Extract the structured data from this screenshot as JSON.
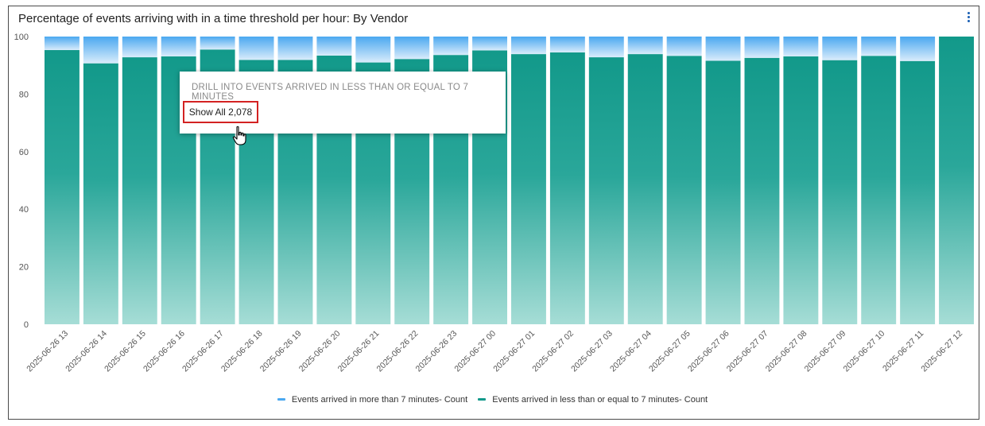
{
  "title": "Percentage of events arriving with in a time threshold per hour: By Vendor",
  "tooltip": {
    "header": "DRILL INTO EVENTS ARRIVED IN LESS THAN OR EQUAL TO 7 MINUTES",
    "button_label": "Show All 2,078"
  },
  "legend": {
    "items": [
      {
        "label": "Events arrived in more than 7 minutes- Count",
        "color": "#4aa8f0"
      },
      {
        "label": "Events arrived in less than or equal to 7 minutes- Count",
        "color": "#11998a"
      }
    ]
  },
  "icons": {
    "menu": "kebab-menu-icon",
    "cursor": "hand-pointer-icon"
  },
  "chart_data": {
    "type": "bar",
    "stacked": true,
    "categories": [
      "2025-06-26 13",
      "2025-06-26 14",
      "2025-06-26 15",
      "2025-06-26 16",
      "2025-06-26 17",
      "2025-06-26 18",
      "2025-06-26 19",
      "2025-06-26 20",
      "2025-06-26 21",
      "2025-06-26 22",
      "2025-06-26 23",
      "2025-06-27 00",
      "2025-06-27 01",
      "2025-06-27 02",
      "2025-06-27 03",
      "2025-06-27 04",
      "2025-06-27 05",
      "2025-06-27 06",
      "2025-06-27 07",
      "2025-06-27 08",
      "2025-06-27 09",
      "2025-06-27 10",
      "2025-06-27 11",
      "2025-06-27 12"
    ],
    "series": [
      {
        "name": "Events arrived in less than or equal to 7 minutes- Count",
        "values": [
          95.3,
          90.7,
          92.8,
          93.1,
          95.5,
          91.9,
          91.9,
          93.4,
          91.0,
          92.2,
          93.6,
          95.2,
          93.9,
          94.5,
          92.8,
          93.9,
          93.3,
          91.6,
          92.6,
          93.1,
          91.8,
          93.3,
          91.5,
          100
        ]
      },
      {
        "name": "Events arrived in more than 7 minutes- Count",
        "values": [
          4.7,
          9.3,
          7.2,
          6.9,
          4.5,
          8.1,
          8.1,
          6.6,
          9.0,
          7.8,
          6.4,
          4.8,
          6.1,
          5.5,
          7.2,
          6.1,
          6.7,
          8.4,
          7.4,
          6.9,
          8.2,
          6.7,
          8.5,
          0
        ]
      }
    ],
    "ylim": [
      0,
      100
    ],
    "yticks": [
      0,
      20,
      40,
      60,
      80,
      100
    ],
    "legend_position": "bottom",
    "grid": false
  }
}
